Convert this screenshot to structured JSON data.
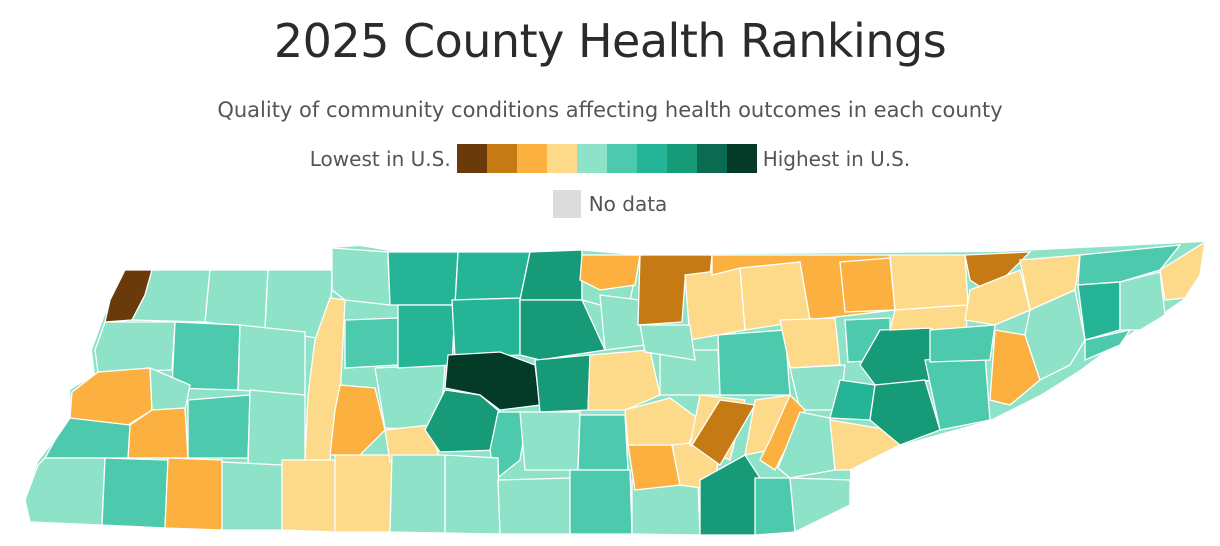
{
  "title": "2025 County Health Rankings",
  "subtitle": "Quality of community conditions affecting health outcomes in each county",
  "legend": {
    "low_label": "Lowest in U.S.",
    "high_label": "Highest in U.S.",
    "no_data_label": "No data",
    "no_data_color": "#dcdcdc",
    "scale": [
      "#6b3a0a",
      "#c67a14",
      "#fbb040",
      "#fdd98a",
      "#8de2c8",
      "#4dc9ad",
      "#25b596",
      "#169a78",
      "#0b6b50",
      "#033a28"
    ]
  }
}
